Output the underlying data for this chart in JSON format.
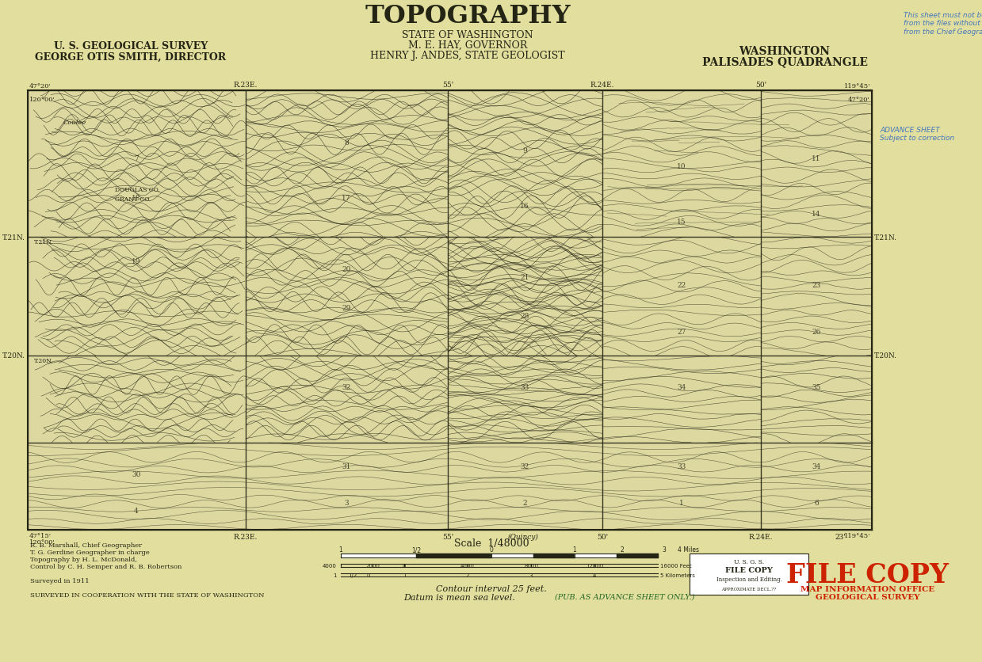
{
  "bg_color": "#ddd8a0",
  "paper_color": "#e2de9e",
  "dark_color": "#252515",
  "stamp_color": "#cc2200",
  "blue_color": "#4477bb",
  "green_color": "#226622",
  "title_main": "TOPOGRAPHY",
  "title_line2": "STATE OF WASHINGTON",
  "title_line3": "M. E. HAY, GOVERNOR",
  "title_line4": "HENRY J. ANDES, STATE GEOLOGIST",
  "quadrangle_state": "WASHINGTON",
  "quadrangle_name": "PALISADES QUADRANGLE",
  "usgs_line1": "U. S. GEOLOGICAL SURVEY",
  "usgs_line2": "GEORGE OTIS SMITH, DIRECTOR",
  "stamp_text": "FILE COPY",
  "stamp_sub": "MAP INFORMATION OFFICE\nGEOLOGICAL SURVEY",
  "credits_line1": "R. B. Marshall, Chief Geographer",
  "credits_line2": "T. G. Gerdine Geographer in charge",
  "credits_line3": "Topography by H. L. McDonald,",
  "credits_line4": "Control by C. H. Semper and R. B. Robertson",
  "credits_line5": "Surveyed in 1911",
  "credits_line6": "SURVEYED IN COOPERATION WITH THE STATE OF WASHINGTON",
  "scale_text": "Scale  1/48000",
  "contour_text": "Contour interval 25 feet.",
  "datum_text": "Datum is mean sea level.",
  "pub_note": "(PUB. AS ADVANCE SHEET ONLY.)",
  "blue_stamp": "This sheet must not be taken\nfrom the files without an order\nfrom the Chief Geographer.",
  "advance_sheet": "ADVANCE SHEET\nSubject to correction"
}
